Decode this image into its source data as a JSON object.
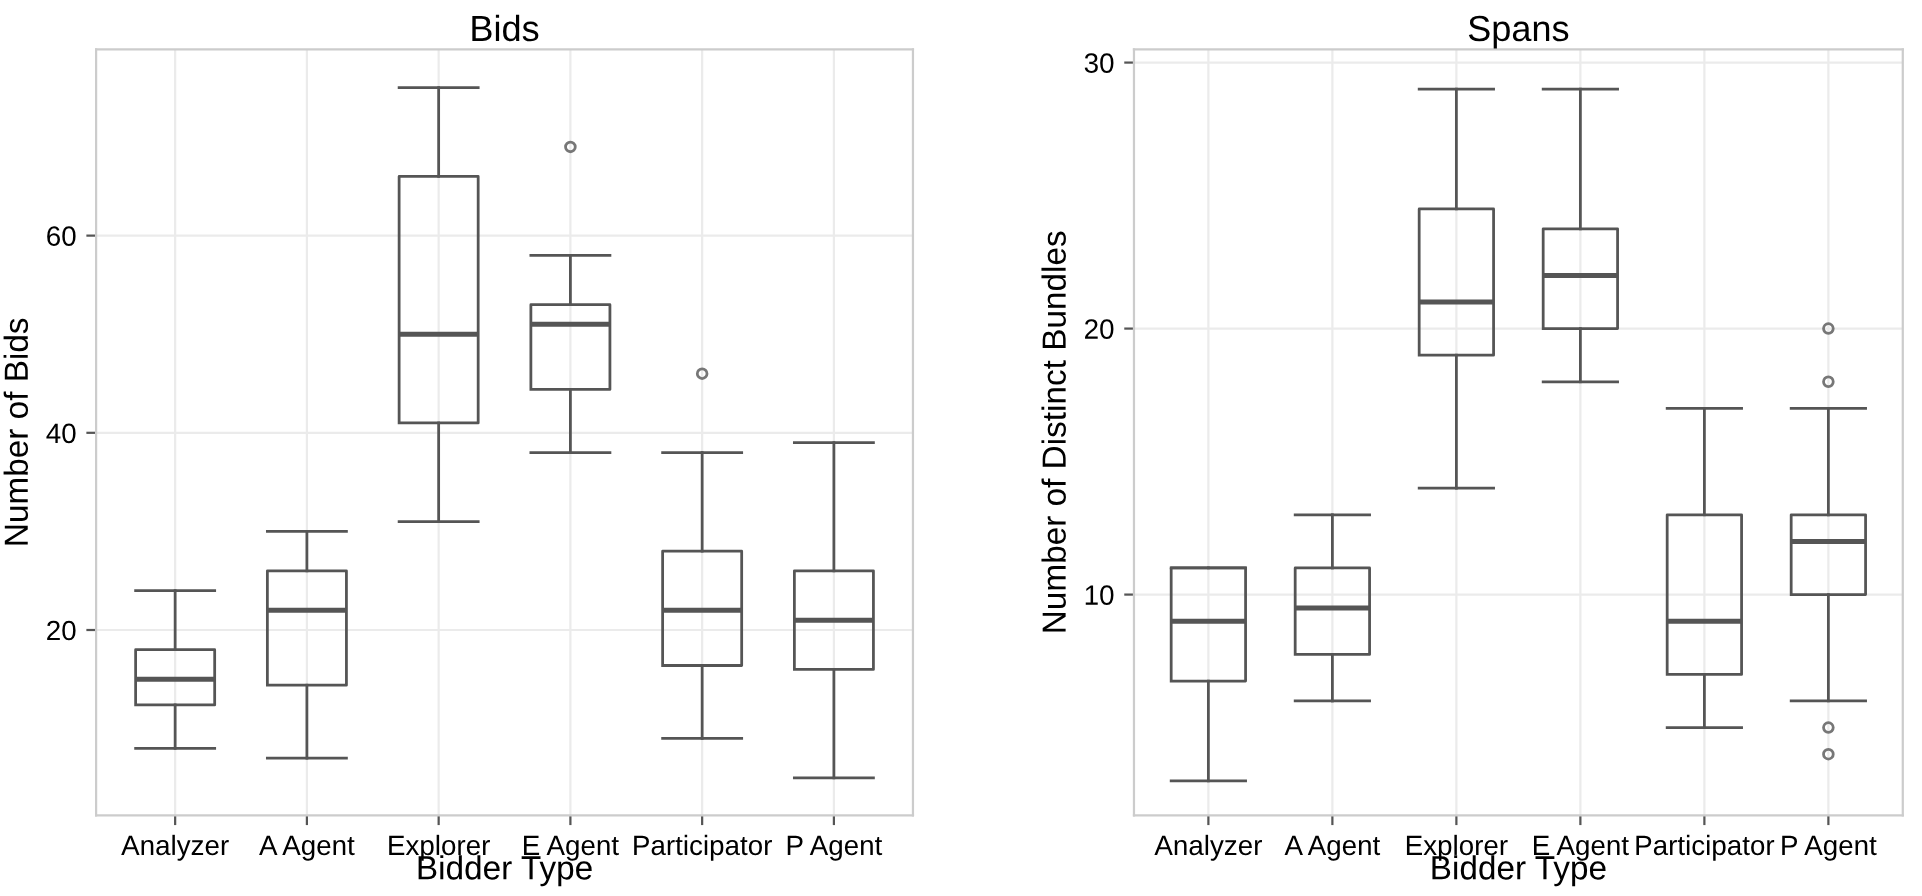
{
  "chart_data": [
    {
      "type": "box",
      "title": "Bids",
      "xlabel": "Bidder Type",
      "ylabel": "Number of Bids",
      "categories": [
        "Analyzer",
        "A Agent",
        "Explorer",
        "E Agent",
        "Participator",
        "P Agent"
      ],
      "ylim": [
        1.2,
        78.9
      ],
      "yticks": [
        20,
        40,
        60
      ],
      "grid": true,
      "boxes": [
        {
          "low": 8,
          "q1": 12.4,
          "median": 15,
          "q3": 18,
          "high": 24
        },
        {
          "low": 7,
          "q1": 14.4,
          "median": 22,
          "q3": 26,
          "high": 30
        },
        {
          "low": 31,
          "q1": 41,
          "median": 50,
          "q3": 66,
          "high": 75
        },
        {
          "low": 38,
          "q1": 44.4,
          "median": 51,
          "q3": 53,
          "high": 58,
          "outliers": [
            69
          ]
        },
        {
          "low": 9,
          "q1": 16.4,
          "median": 22,
          "q3": 28,
          "high": 38,
          "outliers": [
            46
          ]
        },
        {
          "low": 5,
          "q1": 16,
          "median": 21,
          "q3": 26,
          "high": 39
        }
      ]
    },
    {
      "type": "box",
      "title": "Spans",
      "xlabel": "Bidder Type",
      "ylabel": "Number of Distinct Bundles",
      "categories": [
        "Analyzer",
        "A Agent",
        "Explorer",
        "E Agent",
        "Participator",
        "P Agent"
      ],
      "ylim": [
        1.7,
        30.5
      ],
      "yticks": [
        10,
        20,
        30
      ],
      "grid": true,
      "boxes": [
        {
          "low": 3,
          "q1": 6.75,
          "median": 9,
          "q3": 11,
          "high": 11
        },
        {
          "low": 6,
          "q1": 7.75,
          "median": 9.5,
          "q3": 11,
          "high": 13
        },
        {
          "low": 14,
          "q1": 19,
          "median": 21,
          "q3": 24.5,
          "high": 29
        },
        {
          "low": 18,
          "q1": 20,
          "median": 22,
          "q3": 23.75,
          "high": 29
        },
        {
          "low": 5,
          "q1": 7,
          "median": 9,
          "q3": 13,
          "high": 17
        },
        {
          "low": 6,
          "q1": 10,
          "median": 12,
          "q3": 13,
          "high": 17,
          "outliers": [
            20,
            18,
            5,
            4
          ]
        }
      ]
    }
  ]
}
